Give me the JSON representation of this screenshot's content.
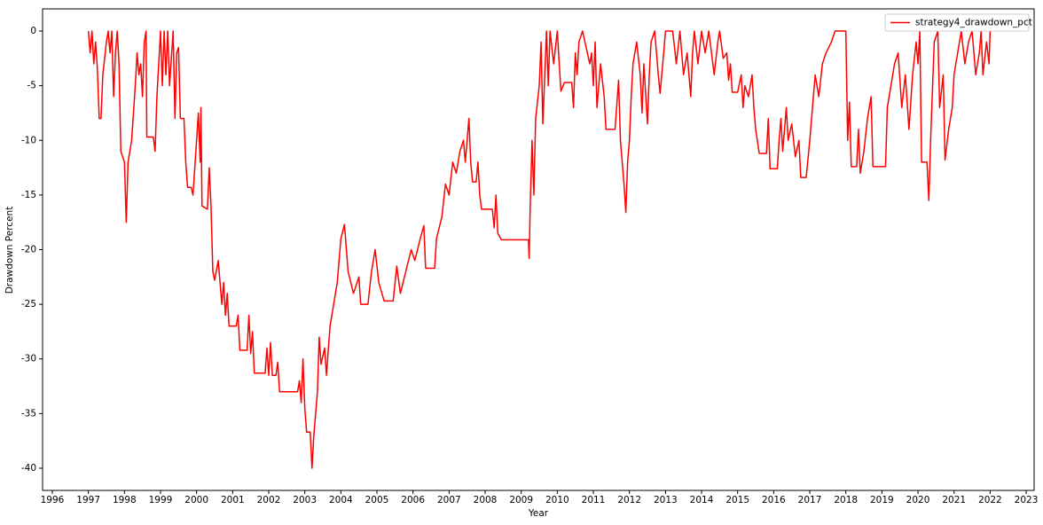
{
  "chart_data": {
    "type": "line",
    "xlabel": "Year",
    "ylabel": "Drawdown Percent",
    "x": [
      1997.0,
      1997.05,
      1997.1,
      1997.15,
      1997.2,
      1997.25,
      1997.3,
      1997.35,
      1997.4,
      1997.5,
      1997.55,
      1997.6,
      1997.65,
      1997.7,
      1997.75,
      1997.8,
      1997.85,
      1997.9,
      1998.0,
      1998.05,
      1998.1,
      1998.2,
      1998.3,
      1998.35,
      1998.4,
      1998.45,
      1998.5,
      1998.55,
      1998.6,
      1998.62,
      1998.8,
      1998.85,
      1998.9,
      1998.95,
      1999.0,
      1999.05,
      1999.1,
      1999.15,
      1999.2,
      1999.25,
      1999.35,
      1999.4,
      1999.45,
      1999.5,
      1999.55,
      1999.65,
      1999.7,
      1999.75,
      1999.85,
      1999.9,
      2000.0,
      2000.05,
      2000.1,
      2000.12,
      2000.15,
      2000.3,
      2000.35,
      2000.4,
      2000.45,
      2000.5,
      2000.6,
      2000.7,
      2000.75,
      2000.8,
      2000.85,
      2000.9,
      2001.1,
      2001.15,
      2001.2,
      2001.4,
      2001.45,
      2001.5,
      2001.55,
      2001.6,
      2001.9,
      2001.95,
      2002.0,
      2002.05,
      2002.1,
      2002.2,
      2002.25,
      2002.3,
      2002.8,
      2002.85,
      2002.9,
      2002.95,
      2003.0,
      2003.05,
      2003.15,
      2003.2,
      2003.25,
      2003.3,
      2003.35,
      2003.4,
      2003.45,
      2003.55,
      2003.6,
      2003.7,
      2003.8,
      2003.9,
      2004.0,
      2004.1,
      2004.2,
      2004.35,
      2004.5,
      2004.55,
      2004.75,
      2004.85,
      2004.95,
      2005.05,
      2005.2,
      2005.45,
      2005.55,
      2005.65,
      2005.8,
      2005.95,
      2006.05,
      2006.2,
      2006.3,
      2006.35,
      2006.6,
      2006.65,
      2006.8,
      2006.9,
      2007.0,
      2007.1,
      2007.2,
      2007.3,
      2007.4,
      2007.45,
      2007.55,
      2007.6,
      2007.65,
      2007.75,
      2007.8,
      2007.85,
      2007.9,
      2008.2,
      2008.25,
      2008.3,
      2008.35,
      2008.45,
      2009.2,
      2009.22,
      2009.25,
      2009.3,
      2009.35,
      2009.4,
      2009.5,
      2009.55,
      2009.6,
      2009.7,
      2009.75,
      2009.8,
      2009.9,
      2010.0,
      2010.1,
      2010.2,
      2010.4,
      2010.45,
      2010.5,
      2010.55,
      2010.6,
      2010.7,
      2010.9,
      2010.95,
      2011.0,
      2011.05,
      2011.1,
      2011.2,
      2011.3,
      2011.35,
      2011.6,
      2011.7,
      2011.75,
      2011.85,
      2011.9,
      2011.95,
      2012.0,
      2012.05,
      2012.1,
      2012.2,
      2012.3,
      2012.35,
      2012.4,
      2012.5,
      2012.55,
      2012.6,
      2012.7,
      2012.8,
      2012.85,
      2012.95,
      2013.0,
      2013.2,
      2013.3,
      2013.4,
      2013.5,
      2013.6,
      2013.7,
      2013.75,
      2013.8,
      2013.9,
      2014.0,
      2014.1,
      2014.2,
      2014.35,
      2014.45,
      2014.5,
      2014.6,
      2014.7,
      2014.75,
      2014.8,
      2014.85,
      2015.0,
      2015.1,
      2015.15,
      2015.2,
      2015.3,
      2015.4,
      2015.45,
      2015.5,
      2015.6,
      2015.8,
      2015.85,
      2015.9,
      2016.1,
      2016.15,
      2016.2,
      2016.25,
      2016.35,
      2016.4,
      2016.5,
      2016.6,
      2016.7,
      2016.75,
      2016.9,
      2017.0,
      2017.05,
      2017.15,
      2017.25,
      2017.35,
      2017.45,
      2017.6,
      2017.7,
      2018.0,
      2018.05,
      2018.1,
      2018.15,
      2018.3,
      2018.35,
      2018.4,
      2018.5,
      2018.6,
      2018.7,
      2018.75,
      2019.1,
      2019.15,
      2019.25,
      2019.35,
      2019.45,
      2019.55,
      2019.65,
      2019.75,
      2019.85,
      2019.95,
      2020.0,
      2020.05,
      2020.1,
      2020.25,
      2020.3,
      2020.35,
      2020.45,
      2020.55,
      2020.6,
      2020.7,
      2020.75,
      2020.85,
      2020.95,
      2021.0,
      2021.1,
      2021.2,
      2021.3,
      2021.4,
      2021.5,
      2021.6,
      2021.7,
      2021.75,
      2021.8,
      2021.9,
      2021.97,
      2022.0
    ],
    "series": [
      {
        "name": "strategy4_drawdown_pct",
        "color": "#ff0000",
        "values": [
          0,
          -2,
          0,
          -3,
          -1,
          -3.5,
          -8,
          -8,
          -4,
          -1,
          0,
          -2,
          0,
          -6,
          -2,
          0,
          -3,
          -11,
          -12,
          -17.5,
          -12,
          -10,
          -5,
          -2,
          -4,
          -3,
          -6,
          -1,
          0,
          -9.7,
          -9.7,
          -11,
          -6,
          -3,
          0,
          -5,
          0,
          -4,
          0,
          -5,
          0,
          -8,
          -2,
          -1.5,
          -8,
          -8,
          -12,
          -14.3,
          -14.3,
          -15,
          -10,
          -7.5,
          -12,
          -7,
          -16,
          -16.3,
          -12.5,
          -16,
          -22,
          -22.8,
          -21,
          -25,
          -23,
          -26,
          -24,
          -27,
          -27,
          -26,
          -29.2,
          -29.2,
          -26,
          -29.5,
          -27.5,
          -31.3,
          -31.3,
          -29,
          -31.5,
          -28.5,
          -31.5,
          -31.5,
          -30.3,
          -33,
          -33,
          -32,
          -34,
          -30,
          -34.5,
          -36.7,
          -36.7,
          -40,
          -37,
          -35,
          -33,
          -28,
          -30.5,
          -29,
          -31.5,
          -27,
          -25,
          -23,
          -19,
          -17.7,
          -22,
          -24,
          -22.5,
          -25,
          -25,
          -22,
          -20,
          -23,
          -24.7,
          -24.7,
          -21.5,
          -24,
          -22,
          -20,
          -21,
          -19,
          -17.8,
          -21.7,
          -21.7,
          -19,
          -17,
          -14,
          -15,
          -12,
          -13,
          -11,
          -10,
          -12,
          -8,
          -12,
          -13.8,
          -13.8,
          -12,
          -15,
          -16.3,
          -16.3,
          -18,
          -15,
          -18.5,
          -19.1,
          -19.1,
          -20.8,
          -16,
          -10,
          -15,
          -8,
          -5,
          -1,
          -8.5,
          0,
          -5,
          0,
          -3,
          0,
          -5.5,
          -4.7,
          -4.7,
          -7,
          -2,
          -4,
          -1,
          0,
          -3,
          -2,
          -5,
          -1,
          -7,
          -3,
          -6,
          -9,
          -9,
          -4.5,
          -10,
          -14,
          -16.6,
          -12,
          -10,
          -6,
          -3,
          -1,
          -4,
          -7.5,
          -3,
          -8.5,
          -4,
          -1,
          0,
          -4,
          -5.7,
          -2,
          0,
          0,
          -3,
          0,
          -4,
          -2,
          -6,
          -2,
          0,
          -3,
          0,
          -2,
          0,
          -4,
          -1,
          0,
          -2.5,
          -2,
          -4.5,
          -3,
          -5.6,
          -5.6,
          -4,
          -7,
          -5,
          -6,
          -4,
          -7,
          -9,
          -11.2,
          -11.2,
          -8,
          -12.6,
          -12.6,
          -10,
          -8,
          -11,
          -7,
          -10,
          -8.5,
          -11.5,
          -10,
          -13.4,
          -13.4,
          -10,
          -8,
          -4,
          -6,
          -3,
          -2,
          -1,
          0,
          0,
          -10,
          -6.5,
          -12.4,
          -12.4,
          -9,
          -13,
          -11,
          -8,
          -6,
          -12.4,
          -12.4,
          -7,
          -5,
          -3,
          -2,
          -7,
          -4,
          -9,
          -4,
          -1,
          -3,
          0,
          -12,
          -12,
          -15.5,
          -10,
          -1,
          0,
          -7,
          -4,
          -11.8,
          -9,
          -7,
          -4,
          -2,
          0,
          -3,
          -1,
          0,
          -4,
          -2,
          0,
          -4,
          -1,
          -3,
          0
        ]
      }
    ],
    "xlim": [
      1995.73,
      2023.22
    ],
    "xticks": [
      1996,
      1997,
      1998,
      1999,
      2000,
      2001,
      2002,
      2003,
      2004,
      2005,
      2006,
      2007,
      2008,
      2009,
      2010,
      2011,
      2012,
      2013,
      2014,
      2015,
      2016,
      2017,
      2018,
      2019,
      2020,
      2021,
      2022,
      2023
    ],
    "ylim": [
      -42.03,
      2.03
    ],
    "yticks": [
      0,
      -5,
      -10,
      -15,
      -20,
      -25,
      -30,
      -35,
      -40
    ],
    "grid": false,
    "legend": "upper right"
  }
}
